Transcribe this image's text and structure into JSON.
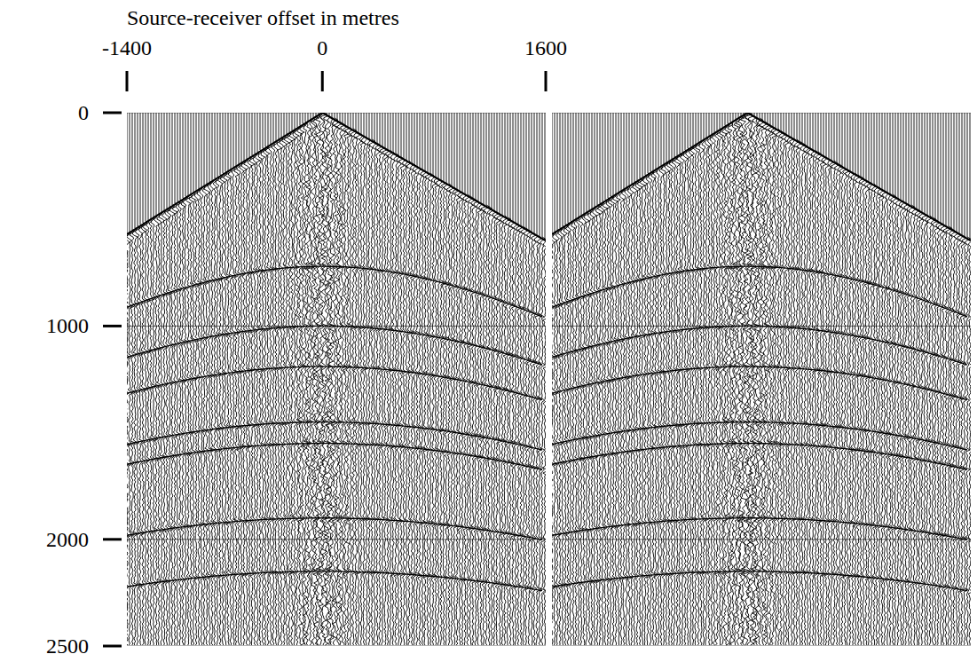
{
  "chart_data": {
    "type": "seismic_gather",
    "x_label": "Source-receiver offset in metres",
    "xlim": [
      -1400,
      1600
    ],
    "xticks": [
      -1400,
      0,
      1600
    ],
    "ylim": [
      0,
      2500
    ],
    "yticks": [
      0,
      1000,
      2000,
      2500
    ],
    "panels": 2,
    "grid": true,
    "series": [
      {
        "x": [
          -1400,
          0,
          1600
        ],
        "values": [
          570,
          0,
          600
        ],
        "color": "#000000"
      }
    ],
    "reflections": {
      "t0": [
        720,
        1000,
        1190,
        1450,
        1550,
        1900,
        2150
      ],
      "velocity": 2500
    }
  }
}
